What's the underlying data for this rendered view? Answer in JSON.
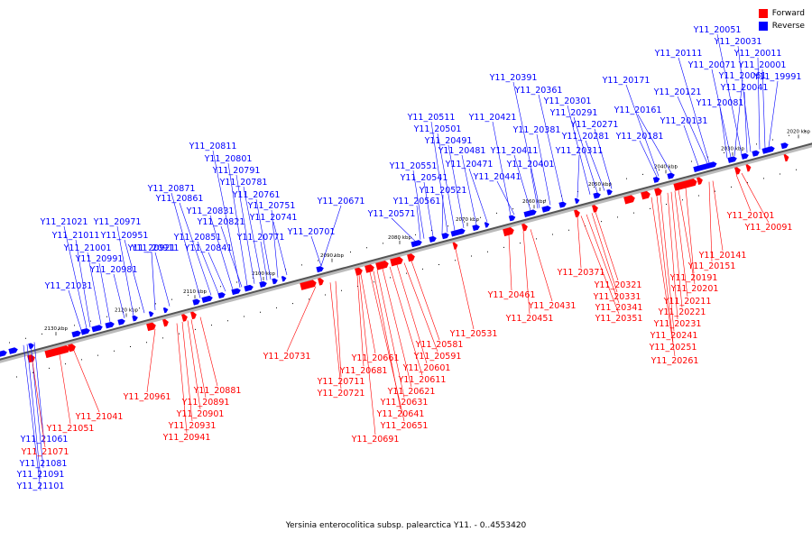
{
  "caption": "Yersinia enterocolitica subsp. palearctica Y11. - 0..4553420",
  "legend": [
    {
      "label": "Forward",
      "color": "#ff0000"
    },
    {
      "label": "Reverse",
      "color": "#0000ff"
    }
  ],
  "colors": {
    "forward": "#ff0000",
    "reverse": "#0000ff",
    "backbone": "#555555"
  },
  "scale_ticks": [
    "2020 kbp",
    "2030 kbp",
    "2040 kbp",
    "2050 kbp",
    "2060 kbp",
    "2070 kbp",
    "2080 kbp",
    "2090 kbp",
    "2100 kbp",
    "2110 kbp",
    "2120 kbp",
    "2130 kbp"
  ],
  "genes": {
    "reverse": [
      "Y11_19991",
      "Y11_20001",
      "Y11_20011",
      "Y11_20031",
      "Y11_20041",
      "Y11_20051",
      "Y11_20061",
      "Y11_20071",
      "Y11_20081",
      "Y11_20111",
      "Y11_20121",
      "Y11_20131",
      "Y11_20161",
      "Y11_20171",
      "Y11_20181",
      "Y11_20271",
      "Y11_20281",
      "Y11_20291",
      "Y11_20301",
      "Y11_20311",
      "Y11_20361",
      "Y11_20381",
      "Y11_20391",
      "Y11_20401",
      "Y11_20411",
      "Y11_20421",
      "Y11_20441",
      "Y11_20471",
      "Y11_20481",
      "Y11_20491",
      "Y11_20501",
      "Y11_20511",
      "Y11_20521",
      "Y11_20541",
      "Y11_20551",
      "Y11_20561",
      "Y11_20571",
      "Y11_20671",
      "Y11_20701",
      "Y11_20741",
      "Y11_20751",
      "Y11_20761",
      "Y11_20771",
      "Y11_20781",
      "Y11_20791",
      "Y11_20801",
      "Y11_20811",
      "Y11_20821",
      "Y11_20831",
      "Y11_20841",
      "Y11_20851",
      "Y11_20861",
      "Y11_20871",
      "Y11_20911",
      "Y11_20921",
      "Y11_20951",
      "Y11_20971",
      "Y11_20981",
      "Y11_20991",
      "Y11_21001",
      "Y11_21011",
      "Y11_21021",
      "Y11_21031",
      "Y11_21061",
      "Y11_21081",
      "Y11_21091",
      "Y11_21101"
    ],
    "forward": [
      "Y11_20091",
      "Y11_20101",
      "Y11_20141",
      "Y11_20151",
      "Y11_20191",
      "Y11_20201",
      "Y11_20211",
      "Y11_20221",
      "Y11_20231",
      "Y11_20241",
      "Y11_20251",
      "Y11_20261",
      "Y11_20321",
      "Y11_20331",
      "Y11_20341",
      "Y11_20351",
      "Y11_20371",
      "Y11_20431",
      "Y11_20451",
      "Y11_20461",
      "Y11_20531",
      "Y11_20581",
      "Y11_20591",
      "Y11_20601",
      "Y11_20611",
      "Y11_20621",
      "Y11_20631",
      "Y11_20641",
      "Y11_20651",
      "Y11_20661",
      "Y11_20681",
      "Y11_20691",
      "Y11_20711",
      "Y11_20721",
      "Y11_20731",
      "Y11_20881",
      "Y11_20891",
      "Y11_20901",
      "Y11_20931",
      "Y11_20941",
      "Y11_20961",
      "Y11_21041",
      "Y11_21051",
      "Y11_21071"
    ]
  }
}
